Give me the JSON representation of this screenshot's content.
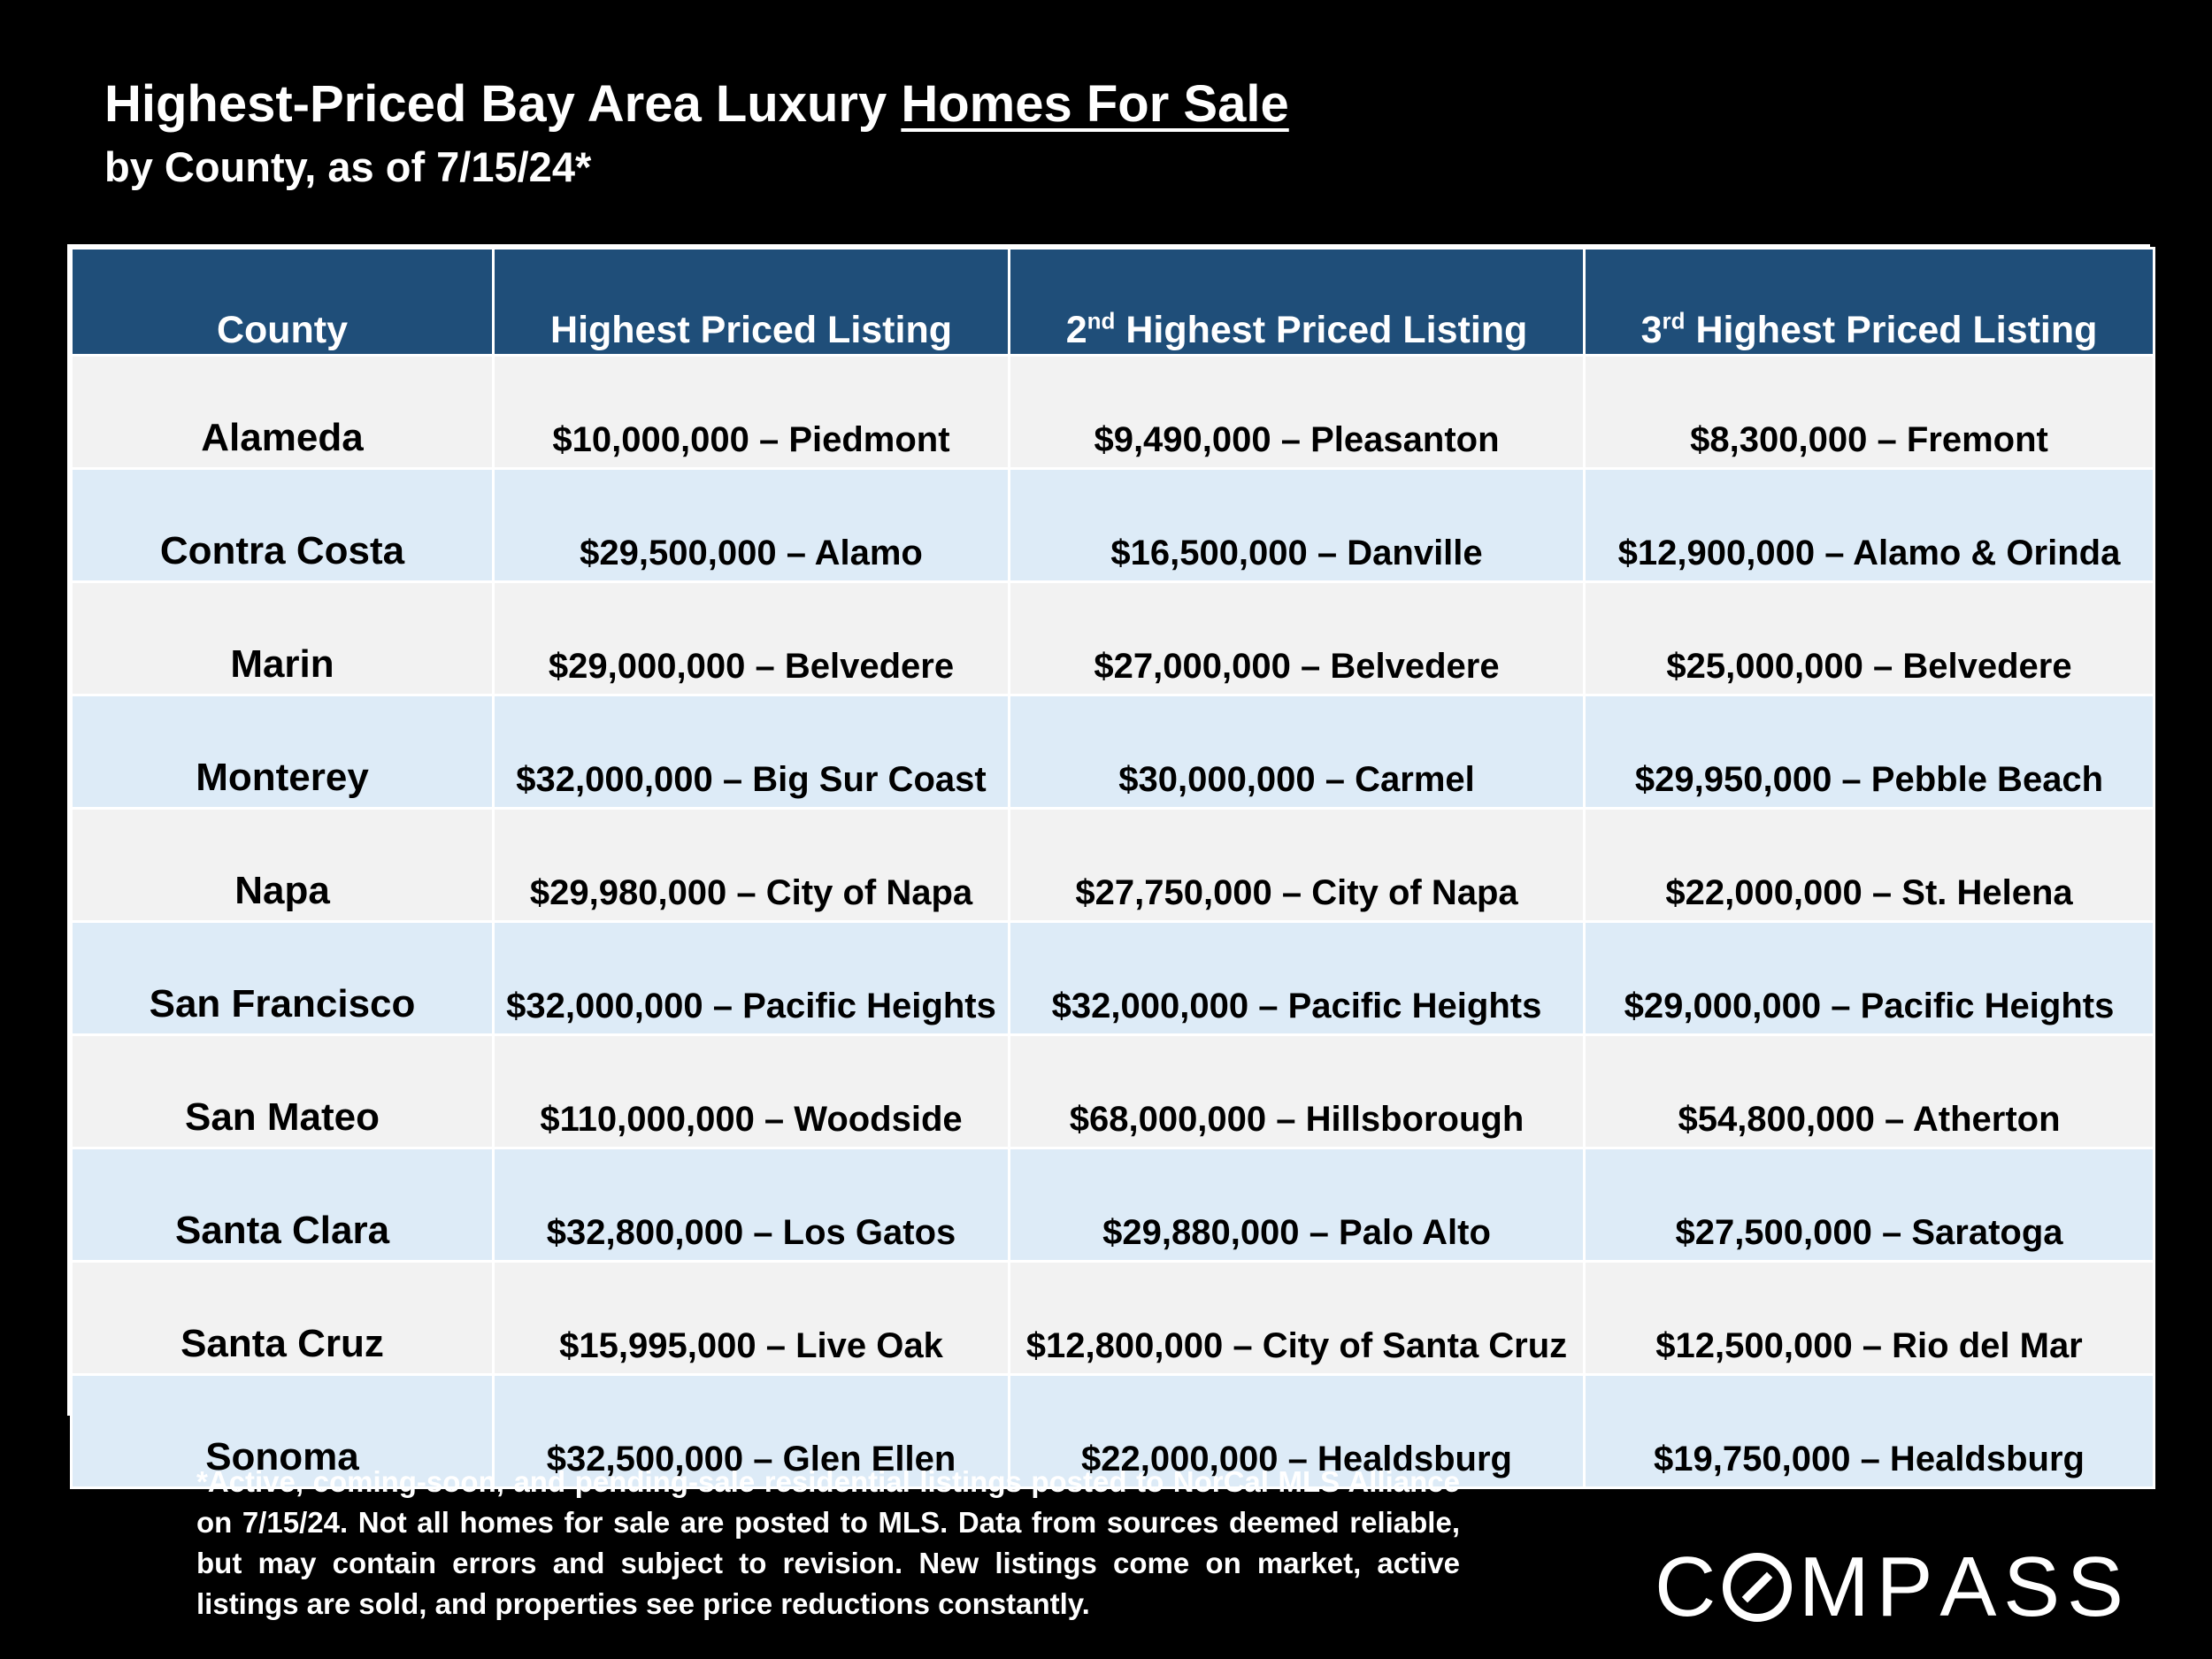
{
  "header": {
    "title_prefix": "Highest-Priced Bay Area Luxury ",
    "title_underlined": "Homes For Sale",
    "subtitle": "by County, as of 7/15/24*"
  },
  "table": {
    "headers": {
      "county": "County",
      "highest": "Highest Priced Listing",
      "second_ord": "2",
      "second_sup": "nd",
      "second_rest": " Highest Priced Listing",
      "third_ord": "3",
      "third_sup": "rd",
      "third_rest": " Highest Priced Listing"
    },
    "rows": [
      {
        "county": "Alameda",
        "first": "$10,000,000 – Piedmont",
        "second": "$9,490,000 – Pleasanton",
        "third": "$8,300,000 – Fremont"
      },
      {
        "county": "Contra Costa",
        "first": "$29,500,000 – Alamo",
        "second": "$16,500,000 – Danville",
        "third": "$12,900,000 – Alamo & Orinda"
      },
      {
        "county": "Marin",
        "first": "$29,000,000 – Belvedere",
        "second": "$27,000,000 – Belvedere",
        "third": "$25,000,000 – Belvedere"
      },
      {
        "county": "Monterey",
        "first": "$32,000,000 – Big Sur Coast",
        "second": "$30,000,000 – Carmel",
        "third": "$29,950,000 – Pebble Beach"
      },
      {
        "county": "Napa",
        "first": "$29,980,000 – City of Napa",
        "second": "$27,750,000 – City of Napa",
        "third": "$22,000,000 – St. Helena"
      },
      {
        "county": "San Francisco",
        "first": "$32,000,000 – Pacific Heights",
        "second": "$32,000,000 – Pacific Heights",
        "third": "$29,000,000 – Pacific Heights"
      },
      {
        "county": "San Mateo",
        "first": "$110,000,000 – Woodside",
        "second": "$68,000,000 – Hillsborough",
        "third": "$54,800,000 – Atherton"
      },
      {
        "county": "Santa Clara",
        "first": "$32,800,000 – Los Gatos",
        "second": "$29,880,000 – Palo Alto",
        "third": "$27,500,000 – Saratoga"
      },
      {
        "county": "Santa Cruz",
        "first": "$15,995,000 – Live Oak",
        "second": "$12,800,000 – City of Santa Cruz",
        "third": "$12,500,000 – Rio del Mar"
      },
      {
        "county": "Sonoma",
        "first": "$32,500,000 – Glen Ellen",
        "second": "$22,000,000 – Healdsburg",
        "third": "$19,750,000 – Healdsburg"
      }
    ]
  },
  "footnote": "*Active, coming-soon, and pending-sale residential listings posted to NorCal MLS Alliance on 7/15/24. Not all homes for sale are posted to MLS. Data from sources deemed reliable, but may contain errors and subject to revision. New listings come on market, active listings are sold, and properties see price reductions constantly.",
  "logo": {
    "text": "COMPASS"
  },
  "colors": {
    "header_bg": "#1f4e79",
    "row_light": "#f2f2f2",
    "row_blue": "#ddebf7",
    "background": "#000000"
  }
}
